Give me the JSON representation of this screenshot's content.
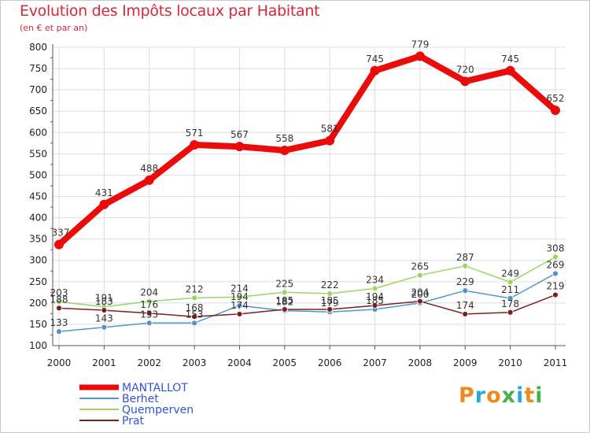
{
  "header": {
    "title": "Evolution des Impôts locaux par Habitant",
    "subtitle": "(en € et par an)"
  },
  "logo": {
    "text": "Proxiti",
    "colors": [
      "#f08a1d",
      "#2aa7dd",
      "#f08a1d",
      "#46b04a",
      "#2aa7dd",
      "#f08a1d",
      "#46b04a"
    ]
  },
  "chart_data": {
    "type": "line",
    "title": "Evolution des Impôts locaux par Habitant",
    "subtitle": "(en € et par an)",
    "xlabel": "",
    "ylabel": "",
    "x": [
      "2000",
      "2001",
      "2002",
      "2003",
      "2004",
      "2005",
      "2006",
      "2007",
      "2008",
      "2009",
      "2010",
      "2011"
    ],
    "ylim": [
      100,
      800
    ],
    "yticks": [
      100,
      150,
      200,
      250,
      300,
      350,
      400,
      450,
      500,
      550,
      600,
      650,
      700,
      750,
      800
    ],
    "legend_position": "bottom-left",
    "series": [
      {
        "name": "MANTALLOT",
        "color": "#ea0b0b",
        "emphasis": true,
        "values": [
          337,
          431,
          488,
          571,
          567,
          558,
          581,
          745,
          779,
          720,
          745,
          652
        ]
      },
      {
        "name": "Berhet",
        "color": "#4f94cd",
        "values": [
          133,
          143,
          153,
          153,
          194,
          182,
          179,
          185,
          200,
          229,
          211,
          269
        ]
      },
      {
        "name": "Quemperven",
        "color": "#9ad660",
        "values": [
          203,
          191,
          204,
          212,
          214,
          225,
          222,
          234,
          265,
          287,
          249,
          308
        ]
      },
      {
        "name": "Prat",
        "color": "#7e1e1e",
        "values": [
          188,
          183,
          176,
          168,
          174,
          185,
          185,
          194,
          204,
          174,
          178,
          219
        ]
      }
    ]
  }
}
